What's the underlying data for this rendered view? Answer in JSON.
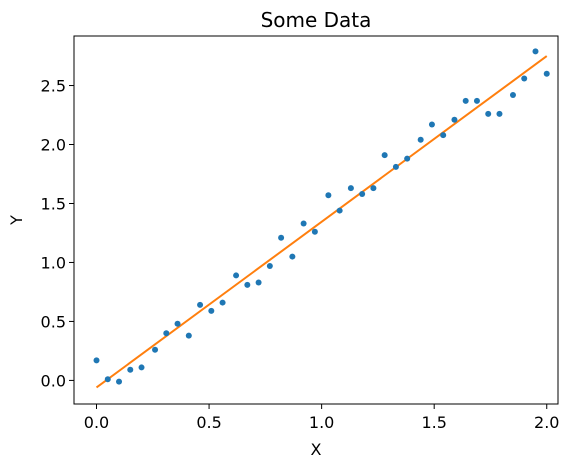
{
  "chart_data": {
    "type": "scatter",
    "title": "Some Data",
    "xlabel": "X",
    "ylabel": "Y",
    "xlim": [
      -0.1,
      2.05
    ],
    "ylim": [
      -0.2,
      2.92
    ],
    "xticks": [
      0.0,
      0.5,
      1.0,
      1.5,
      2.0
    ],
    "xtick_labels": [
      "0.0",
      "0.5",
      "1.0",
      "1.5",
      "2.0"
    ],
    "yticks": [
      0.0,
      0.5,
      1.0,
      1.5,
      2.0,
      2.5
    ],
    "ytick_labels": [
      "0.0",
      "0.5",
      "1.0",
      "1.5",
      "2.0",
      "2.5"
    ],
    "grid": false,
    "series": [
      {
        "kind": "scatter",
        "color": "#1f77b4",
        "x": [
          0.0,
          0.05,
          0.1,
          0.15,
          0.2,
          0.26,
          0.31,
          0.36,
          0.41,
          0.46,
          0.51,
          0.56,
          0.62,
          0.67,
          0.72,
          0.77,
          0.82,
          0.87,
          0.92,
          0.97,
          1.03,
          1.08,
          1.13,
          1.18,
          1.23,
          1.28,
          1.33,
          1.38,
          1.44,
          1.49,
          1.54,
          1.59,
          1.64,
          1.69,
          1.74,
          1.79,
          1.85,
          1.9,
          1.95,
          2.0
        ],
        "y": [
          0.17,
          0.01,
          -0.01,
          0.09,
          0.11,
          0.26,
          0.4,
          0.48,
          0.38,
          0.64,
          0.59,
          0.66,
          0.89,
          0.81,
          0.83,
          0.97,
          1.21,
          1.05,
          1.33,
          1.26,
          1.57,
          1.44,
          1.63,
          1.58,
          1.63,
          1.91,
          1.81,
          1.88,
          2.04,
          2.17,
          2.08,
          2.21,
          2.37,
          2.37,
          2.26,
          2.26,
          2.42,
          2.56,
          2.79,
          2.6
        ]
      },
      {
        "kind": "line",
        "color": "#ff7f0e",
        "x": [
          0.0,
          2.0
        ],
        "y": [
          -0.06,
          2.75
        ]
      }
    ]
  }
}
